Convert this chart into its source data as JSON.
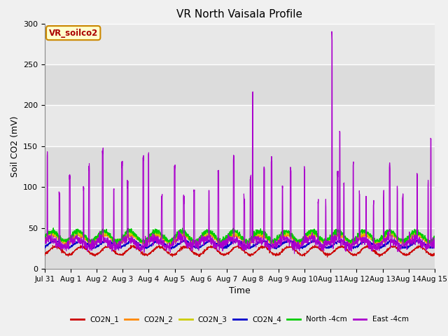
{
  "title": "VR North Vaisala Profile",
  "ylabel": "Soil CO2 (mV)",
  "xlabel": "Time",
  "annotation": "VR_soilco2",
  "ylim": [
    0,
    300
  ],
  "series_colors": {
    "CO2N_1": "#cc0000",
    "CO2N_2": "#ff8800",
    "CO2N_3": "#cccc00",
    "CO2N_4": "#0000cc",
    "North -4cm": "#00cc00",
    "East -4cm": "#aa00cc"
  },
  "fig_bg": "#f0f0f0",
  "plot_bg": "#e8e8e8",
  "band_colors": [
    "#dcdcdc",
    "#e8e8e8"
  ],
  "title_fontsize": 11,
  "annotation_color": "#aa0000",
  "annotation_bg": "#ffffcc",
  "annotation_border": "#cc8800",
  "tick_fontsize": 7.5,
  "ylabel_fontsize": 9,
  "xlabel_fontsize": 9,
  "grid_color": "#ffffff",
  "yticks": [
    0,
    50,
    100,
    150,
    200,
    250,
    300
  ]
}
